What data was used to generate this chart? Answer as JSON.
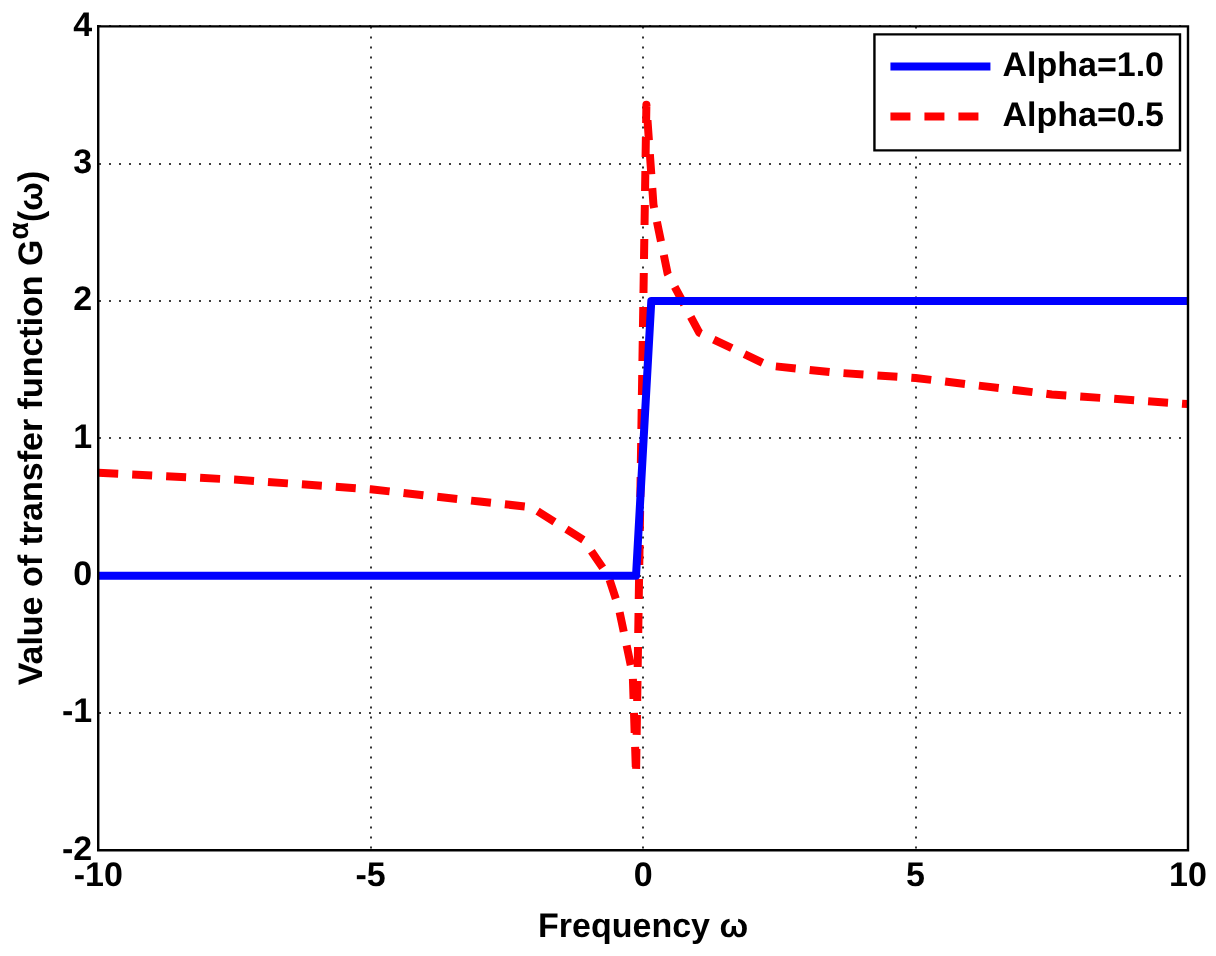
{
  "chart_data": {
    "type": "line",
    "xlabel": "Frequency ω",
    "ylabel": "Value of transfer function G$^{α}$(ω)",
    "xlim": [
      -10,
      10
    ],
    "xticks": [
      -10,
      -5,
      0,
      5,
      10
    ],
    "ylim": [
      -2,
      4
    ],
    "yticks": [
      -2,
      -1,
      0,
      1,
      2,
      3,
      4
    ],
    "grid": true,
    "legend": "top right",
    "marker": "none",
    "series": [
      {
        "name": "Alpha=1.0",
        "color": "#0000ff",
        "line_style": "solid",
        "x": [
          -10,
          -0.13,
          0.15,
          10
        ],
        "values": [
          0,
          0,
          2,
          2
        ]
      },
      {
        "name": "Alpha=0.5",
        "color": "#ff0000",
        "line_style": "dashed",
        "x": [
          -10,
          -7.5,
          -5,
          -3,
          -2.06,
          -1.09,
          -0.64,
          -0.45,
          -0.19,
          -0.13,
          0.06,
          0.19,
          0.45,
          1.03,
          2.3,
          3.5,
          5,
          7.5,
          10
        ],
        "values": [
          0.75,
          0.7,
          0.63,
          0.54,
          0.5,
          0.26,
          0,
          -0.23,
          -0.72,
          -1.45,
          3.43,
          2.7,
          2.2,
          1.77,
          1.53,
          1.48,
          1.44,
          1.32,
          1.25
        ]
      }
    ]
  }
}
